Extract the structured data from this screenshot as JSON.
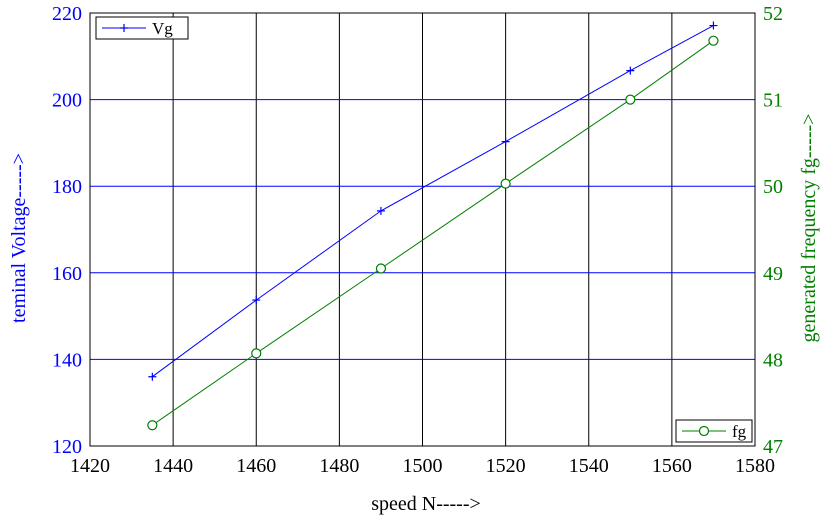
{
  "chart_data": {
    "type": "line",
    "title": "",
    "xlabel": "speed N----->",
    "ylabel_left": "teminal Voltage----->",
    "ylabel_right": "generated frequency fg----->",
    "xlim": [
      1420,
      1580
    ],
    "ylim_left": [
      120,
      220
    ],
    "ylim_right": [
      47,
      52
    ],
    "xticks": [
      1420,
      1440,
      1460,
      1480,
      1500,
      1520,
      1540,
      1560,
      1580
    ],
    "yticks_left": [
      120,
      140,
      160,
      180,
      200,
      220
    ],
    "yticks_right": [
      47,
      48,
      49,
      50,
      51,
      52
    ],
    "grid": true,
    "series": [
      {
        "name": "Vg",
        "axis": "left",
        "marker": "plus",
        "color": "#0000ff",
        "legend_placement": "top-left",
        "x": [
          1435,
          1460,
          1490,
          1520,
          1550,
          1570
        ],
        "y": [
          136,
          153.7,
          174.3,
          190.3,
          206.7,
          217.1
        ]
      },
      {
        "name": "fg",
        "axis": "right",
        "marker": "circle",
        "color": "#007f00",
        "legend_placement": "bottom-right",
        "x": [
          1435,
          1460,
          1490,
          1520,
          1550,
          1570
        ],
        "y": [
          47.24,
          48.07,
          49.05,
          50.03,
          51.0,
          51.68
        ]
      }
    ]
  }
}
